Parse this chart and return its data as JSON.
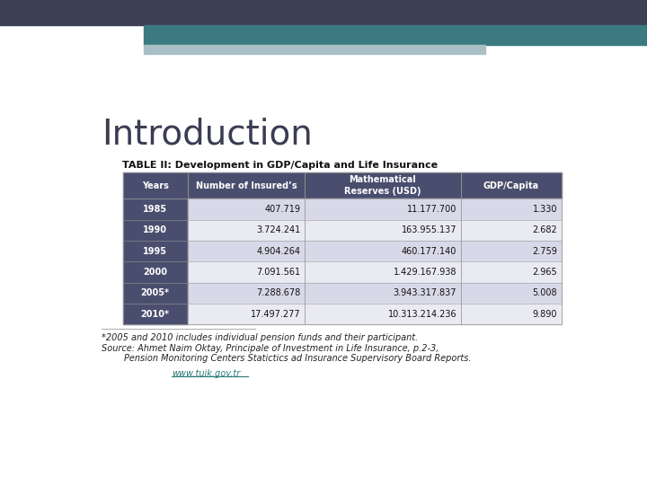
{
  "title": "Introduction",
  "subtitle": "TABLE II: Development in GDP/Capita and Life Insurance",
  "header": [
    "Years",
    "Number of Insured’s",
    "Mathematical\nReserves (USD)",
    "GDP/Capita"
  ],
  "rows": [
    [
      "1985",
      "407.719",
      "11.177.700",
      "1.330"
    ],
    [
      "1990",
      "3.724.241",
      "163.955.137",
      "2.682"
    ],
    [
      "1995",
      "4.904.264",
      "460.177.140",
      "2.759"
    ],
    [
      "2000",
      "7.091.561",
      "1.429.167.938",
      "2.965"
    ],
    [
      "2005*",
      "7.288.678",
      "3.943.317.837",
      "5.008"
    ],
    [
      "2010*",
      "17.497.277",
      "10.313.214.236",
      "9.890"
    ]
  ],
  "header_bg": "#4a4e6e",
  "year_col_bg": "#4a4e6e",
  "row_bg_odd": "#d8d8e8",
  "row_bg_even": "#eaeaf2",
  "header_text_color": "#ffffff",
  "year_text_color": "#ffffff",
  "data_text_color": "#111111",
  "background_color": "#ffffff",
  "footnote_line1": "*2005 and 2010 includes individual pension funds and their participant.",
  "footnote_line2": "Source: Ahmet Naim Oktay, Principale of Investment in Life Insurance, p.2-3,",
  "footnote_line3": "        Pension Monitoring Centers Statictics ad Insurance Supervisory Board Reports.",
  "footnote_link": "www.tuik.gov.tr",
  "top_dark_color": "#3d3f52",
  "top_teal_color": "#3a7a80",
  "top_light_color": "#a8bfc5"
}
